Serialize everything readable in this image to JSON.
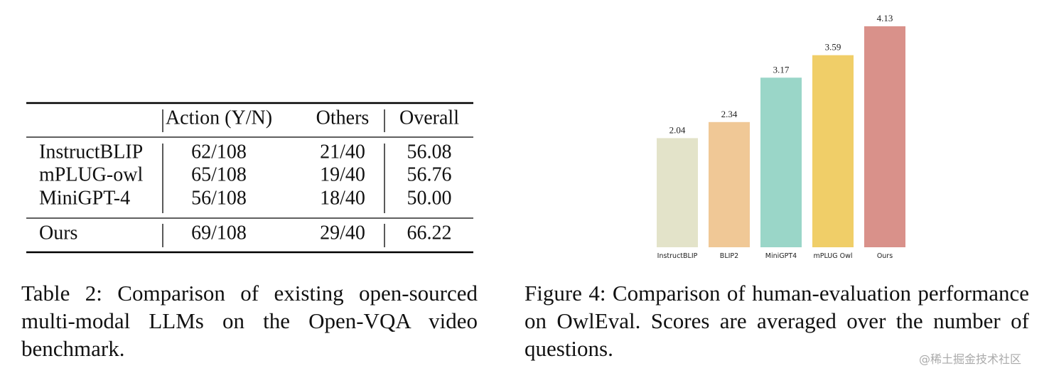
{
  "table": {
    "header": [
      "Action (Y/N)",
      "Others",
      "Overall"
    ],
    "rows": [
      [
        "InstructBLIP",
        "62/108",
        "21/40",
        "56.08"
      ],
      [
        "mPLUG-owl",
        "65/108",
        "19/40",
        "56.76"
      ],
      [
        "MiniGPT-4",
        "56/108",
        "18/40",
        "50.00"
      ],
      [
        "Ours",
        "69/108",
        "29/40",
        "66.22"
      ]
    ]
  },
  "table_caption": "Table 2: Comparison of existing open-sourced multi-modal LLMs on the Open-VQA video benchmark.",
  "chart_data": {
    "type": "bar",
    "categories": [
      "InstructBLIP",
      "BLIP2",
      "MiniGPT4",
      "mPLUG Owl",
      "Ours"
    ],
    "values": [
      2.04,
      2.34,
      3.17,
      3.59,
      4.13
    ],
    "colors": [
      "#e3e3c9",
      "#f0c896",
      "#9ad6c8",
      "#f0ce68",
      "#d9918a"
    ]
  },
  "figure_caption": "Figure 4: Comparison of human-evaluation performance on OwlEval. Scores are averaged over the number of questions.",
  "watermark": "@稀土掘金技术社区"
}
